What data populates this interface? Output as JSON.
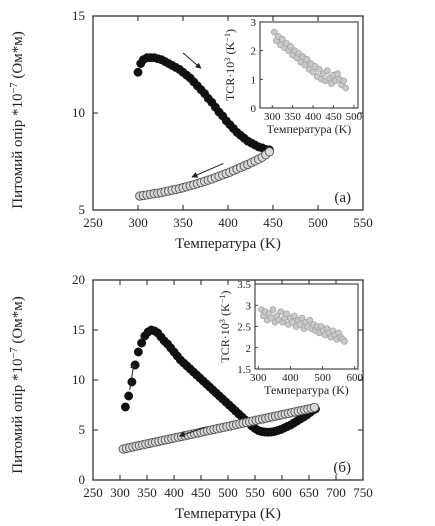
{
  "chart_data": [
    {
      "type": "scatter",
      "panel_label": "(a)",
      "xlabel": "Температура (K)",
      "ylabel": "Питомий опір *10",
      "ylabel_exp": "−7",
      "ylabel_unit": " (Ом*м)",
      "xlim": [
        250,
        550
      ],
      "ylim": [
        5,
        15
      ],
      "xticks": [
        250,
        300,
        350,
        400,
        450,
        500,
        550
      ],
      "yticks": [
        5,
        10,
        15
      ],
      "grid": false,
      "series": [
        {
          "style": "filled",
          "x": [
            300,
            303,
            306,
            310,
            314,
            318,
            322,
            326,
            330,
            334,
            338,
            342,
            346,
            350,
            354,
            358,
            362,
            366,
            370,
            374,
            378,
            382,
            386,
            390,
            394,
            398,
            402,
            406,
            410,
            414,
            418,
            422,
            426,
            430,
            434,
            438,
            442,
            446
          ],
          "y": [
            12.1,
            12.55,
            12.75,
            12.85,
            12.85,
            12.85,
            12.8,
            12.75,
            12.65,
            12.55,
            12.45,
            12.35,
            12.25,
            12.1,
            11.95,
            11.8,
            11.6,
            11.4,
            11.2,
            11.0,
            10.75,
            10.55,
            10.3,
            10.05,
            9.85,
            9.6,
            9.4,
            9.2,
            9.0,
            8.85,
            8.7,
            8.55,
            8.45,
            8.35,
            8.25,
            8.2,
            8.12,
            8.1
          ]
        },
        {
          "style": "open",
          "x": [
            302,
            306,
            310,
            314,
            318,
            322,
            326,
            330,
            334,
            338,
            342,
            346,
            350,
            354,
            358,
            362,
            366,
            370,
            374,
            378,
            382,
            386,
            390,
            394,
            398,
            402,
            406,
            410,
            414,
            418,
            422,
            426,
            430,
            434,
            438,
            442,
            446
          ],
          "y": [
            5.72,
            5.75,
            5.78,
            5.81,
            5.84,
            5.87,
            5.9,
            5.94,
            5.98,
            6.02,
            6.06,
            6.1,
            6.15,
            6.2,
            6.25,
            6.3,
            6.36,
            6.42,
            6.48,
            6.54,
            6.6,
            6.67,
            6.74,
            6.81,
            6.88,
            6.95,
            7.03,
            7.11,
            7.19,
            7.27,
            7.35,
            7.44,
            7.53,
            7.62,
            7.72,
            7.85,
            8.0
          ]
        }
      ],
      "inset": {
        "type": "scatter",
        "xlabel": "Температура (K)",
        "ylabel": "TCR·10",
        "ylabel_exp": "3",
        "ylabel_unit": " (K",
        "ylabel_unit_exp": "−1",
        "ylabel_close": ")",
        "xlim": [
          270,
          510
        ],
        "ylim": [
          0,
          3
        ],
        "xticks": [
          300,
          350,
          400,
          450,
          500
        ],
        "yticks": [
          0,
          1,
          2,
          3
        ],
        "x": [
          305,
          310,
          315,
          320,
          325,
          330,
          335,
          340,
          345,
          350,
          355,
          360,
          365,
          370,
          375,
          380,
          385,
          390,
          395,
          400,
          405,
          410,
          415,
          420,
          425,
          430,
          435,
          440,
          445,
          450,
          455,
          460,
          465,
          470,
          475,
          480
        ],
        "y": [
          2.65,
          2.35,
          2.5,
          2.2,
          2.4,
          2.1,
          2.25,
          2.0,
          2.15,
          1.85,
          2.0,
          1.75,
          1.9,
          1.6,
          1.8,
          1.5,
          1.7,
          1.35,
          1.55,
          1.25,
          1.45,
          1.1,
          1.35,
          1.0,
          1.2,
          0.95,
          1.3,
          1.05,
          0.85,
          1.15,
          0.95,
          1.2,
          1.0,
          0.8,
          0.95,
          0.7
        ]
      },
      "arrows": [
        {
          "direction": "down-right",
          "from": [
            350,
            13.1
          ],
          "to": [
            370,
            12.3
          ]
        },
        {
          "direction": "left",
          "from": [
            395,
            7.4
          ],
          "to": [
            360,
            6.7
          ]
        }
      ]
    },
    {
      "type": "scatter",
      "panel_label": "(б)",
      "xlabel": "Температура (K)",
      "ylabel": "Питомий опір *10",
      "ylabel_exp": "−7",
      "ylabel_unit": " (Ом*м)",
      "xlim": [
        250,
        750
      ],
      "ylim": [
        0,
        20
      ],
      "xticks": [
        250,
        300,
        350,
        400,
        450,
        500,
        550,
        600,
        650,
        700,
        750
      ],
      "yticks": [
        0,
        5,
        10,
        15,
        20
      ],
      "grid": false,
      "series": [
        {
          "style": "filled",
          "x": [
            310,
            316,
            322,
            328,
            334,
            340,
            346,
            352,
            358,
            364,
            370,
            376,
            382,
            388,
            394,
            400,
            406,
            412,
            418,
            424,
            430,
            436,
            442,
            448,
            454,
            460,
            466,
            472,
            478,
            484,
            490,
            496,
            502,
            508,
            514,
            520,
            526,
            532,
            538,
            544,
            550,
            556,
            562,
            568,
            574,
            580,
            586,
            592,
            598,
            604,
            610,
            616,
            622,
            628,
            634,
            640,
            646,
            652,
            658,
            662
          ],
          "y": [
            7.3,
            8.4,
            9.8,
            11.5,
            12.8,
            13.7,
            14.4,
            14.8,
            15.0,
            14.9,
            14.7,
            14.3,
            13.9,
            13.6,
            13.2,
            12.8,
            12.4,
            12.0,
            11.7,
            11.4,
            11.1,
            10.8,
            10.5,
            10.2,
            9.9,
            9.6,
            9.3,
            9.0,
            8.7,
            8.4,
            8.1,
            7.8,
            7.5,
            7.2,
            6.9,
            6.6,
            6.3,
            6.0,
            5.7,
            5.4,
            5.15,
            4.95,
            4.85,
            4.8,
            4.78,
            4.8,
            4.85,
            4.95,
            5.05,
            5.2,
            5.35,
            5.5,
            5.7,
            5.9,
            6.1,
            6.3,
            6.5,
            6.75,
            7.0,
            7.1
          ]
        },
        {
          "style": "open",
          "x": [
            306,
            312,
            318,
            324,
            330,
            336,
            342,
            348,
            354,
            360,
            366,
            372,
            378,
            384,
            390,
            396,
            402,
            408,
            414,
            420,
            426,
            432,
            438,
            444,
            450,
            456,
            462,
            468,
            474,
            480,
            486,
            492,
            498,
            504,
            510,
            516,
            522,
            528,
            534,
            540,
            546,
            552,
            558,
            564,
            570,
            576,
            582,
            588,
            594,
            600,
            606,
            612,
            618,
            624,
            630,
            636,
            642,
            648,
            654,
            660
          ],
          "y": [
            3.1,
            3.17,
            3.24,
            3.31,
            3.38,
            3.45,
            3.52,
            3.59,
            3.66,
            3.73,
            3.8,
            3.87,
            3.94,
            4.01,
            4.08,
            4.15,
            4.22,
            4.29,
            4.36,
            4.43,
            4.5,
            4.57,
            4.64,
            4.71,
            4.78,
            4.85,
            4.92,
            4.99,
            5.06,
            5.13,
            5.2,
            5.27,
            5.34,
            5.41,
            5.48,
            5.55,
            5.62,
            5.69,
            5.76,
            5.83,
            5.9,
            5.97,
            6.04,
            6.11,
            6.18,
            6.25,
            6.32,
            6.39,
            6.46,
            6.53,
            6.6,
            6.67,
            6.74,
            6.81,
            6.88,
            6.95,
            7.02,
            7.09,
            7.16,
            7.25
          ]
        }
      ],
      "inset": {
        "type": "scatter",
        "xlabel": "Температура (K)",
        "ylabel": "TCR·10",
        "ylabel_exp": "3",
        "ylabel_unit": " (K",
        "ylabel_unit_exp": "−1",
        "ylabel_close": ")",
        "xlim": [
          290,
          610
        ],
        "ylim": [
          1.5,
          3.5
        ],
        "xticks": [
          300,
          400,
          500,
          600
        ],
        "yticks": [
          1.5,
          2.0,
          2.5,
          3.0,
          3.5
        ],
        "x": [
          310,
          316,
          322,
          328,
          334,
          340,
          346,
          352,
          358,
          364,
          370,
          376,
          382,
          388,
          394,
          400,
          406,
          412,
          418,
          424,
          430,
          436,
          442,
          448,
          454,
          460,
          466,
          472,
          478,
          484,
          490,
          496,
          502,
          508,
          514,
          520,
          526,
          532,
          538,
          544,
          550,
          556,
          562,
          568
        ],
        "y": [
          2.9,
          2.75,
          2.85,
          2.65,
          2.8,
          2.7,
          2.9,
          2.6,
          2.75,
          2.65,
          2.85,
          2.6,
          2.7,
          2.8,
          2.55,
          2.7,
          2.6,
          2.75,
          2.5,
          2.65,
          2.55,
          2.7,
          2.45,
          2.6,
          2.5,
          2.65,
          2.45,
          2.55,
          2.4,
          2.5,
          2.35,
          2.5,
          2.4,
          2.3,
          2.45,
          2.35,
          2.25,
          2.4,
          2.3,
          2.2,
          2.35,
          2.25,
          2.2,
          2.15
        ]
      },
      "arrows": [
        {
          "direction": "up-right",
          "from": [
            318,
            9.0
          ],
          "to": [
            326,
            11.7
          ]
        },
        {
          "direction": "left",
          "from": [
            460,
            5.3
          ],
          "to": [
            410,
            4.4
          ]
        }
      ]
    }
  ]
}
